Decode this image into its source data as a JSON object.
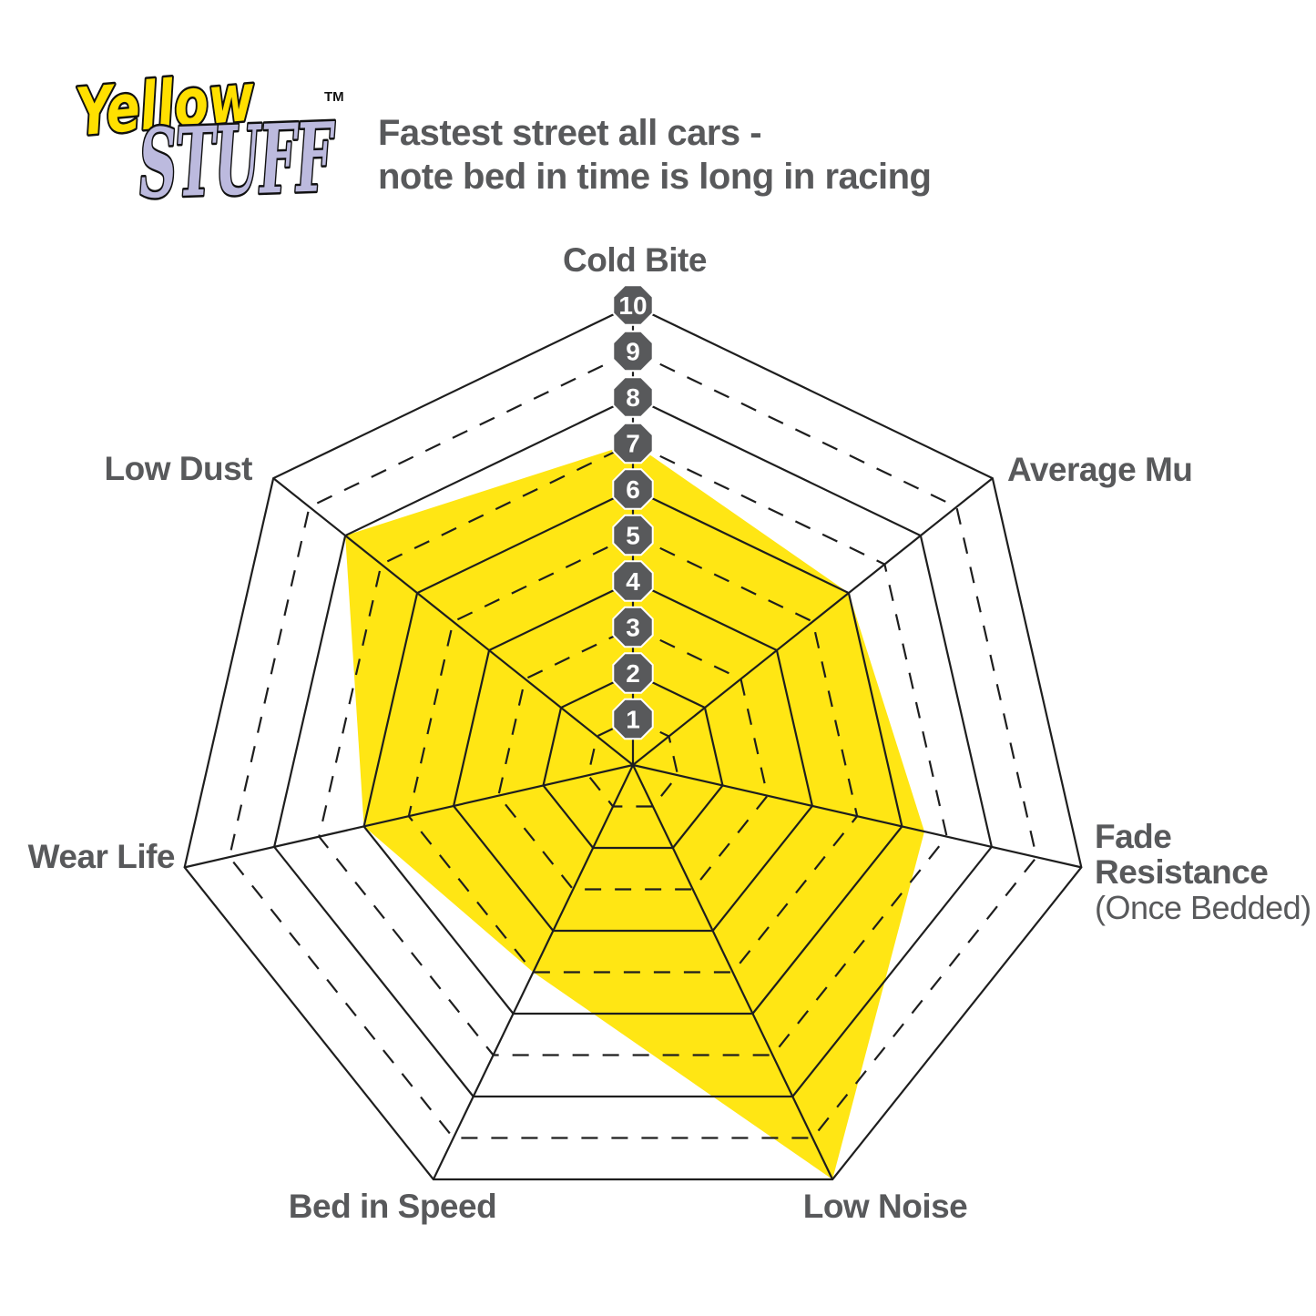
{
  "logo": {
    "word1": "Yellow",
    "word2": "STUFF",
    "trademark": "TM",
    "word1_color": "#ffe000",
    "word2_color": "#bcbade"
  },
  "subtitle": {
    "line1": "Fastest street all cars -",
    "line2": "note bed in time is long in racing"
  },
  "chart_data": {
    "type": "radar",
    "categories": [
      "Cold Bite",
      "Average Mu",
      "Fade Resistance",
      "Low Noise",
      "Bed in Speed",
      "Wear Life",
      "Low Dust"
    ],
    "sublabels": {
      "Fade Resistance": "(Once Bedded)"
    },
    "series": [
      {
        "name": "Yellowstuff",
        "values": [
          7,
          6,
          6.5,
          10,
          5,
          6,
          8
        ]
      }
    ],
    "scale": {
      "min": 0,
      "max": 10,
      "tick_labels": [
        "1",
        "2",
        "3",
        "4",
        "5",
        "6",
        "7",
        "8",
        "9",
        "10"
      ]
    },
    "grid": {
      "solid_rings": [
        2,
        4,
        6,
        8,
        10
      ],
      "dashed_rings": [
        1,
        3,
        5,
        7,
        9
      ],
      "axes_count": 7
    },
    "legend_position": "none",
    "colors": {
      "fill": "#ffe614",
      "grid_line": "#1e1e1e",
      "badge": "#58595b",
      "badge_text": "#ffffff",
      "label": "#58595b"
    }
  }
}
